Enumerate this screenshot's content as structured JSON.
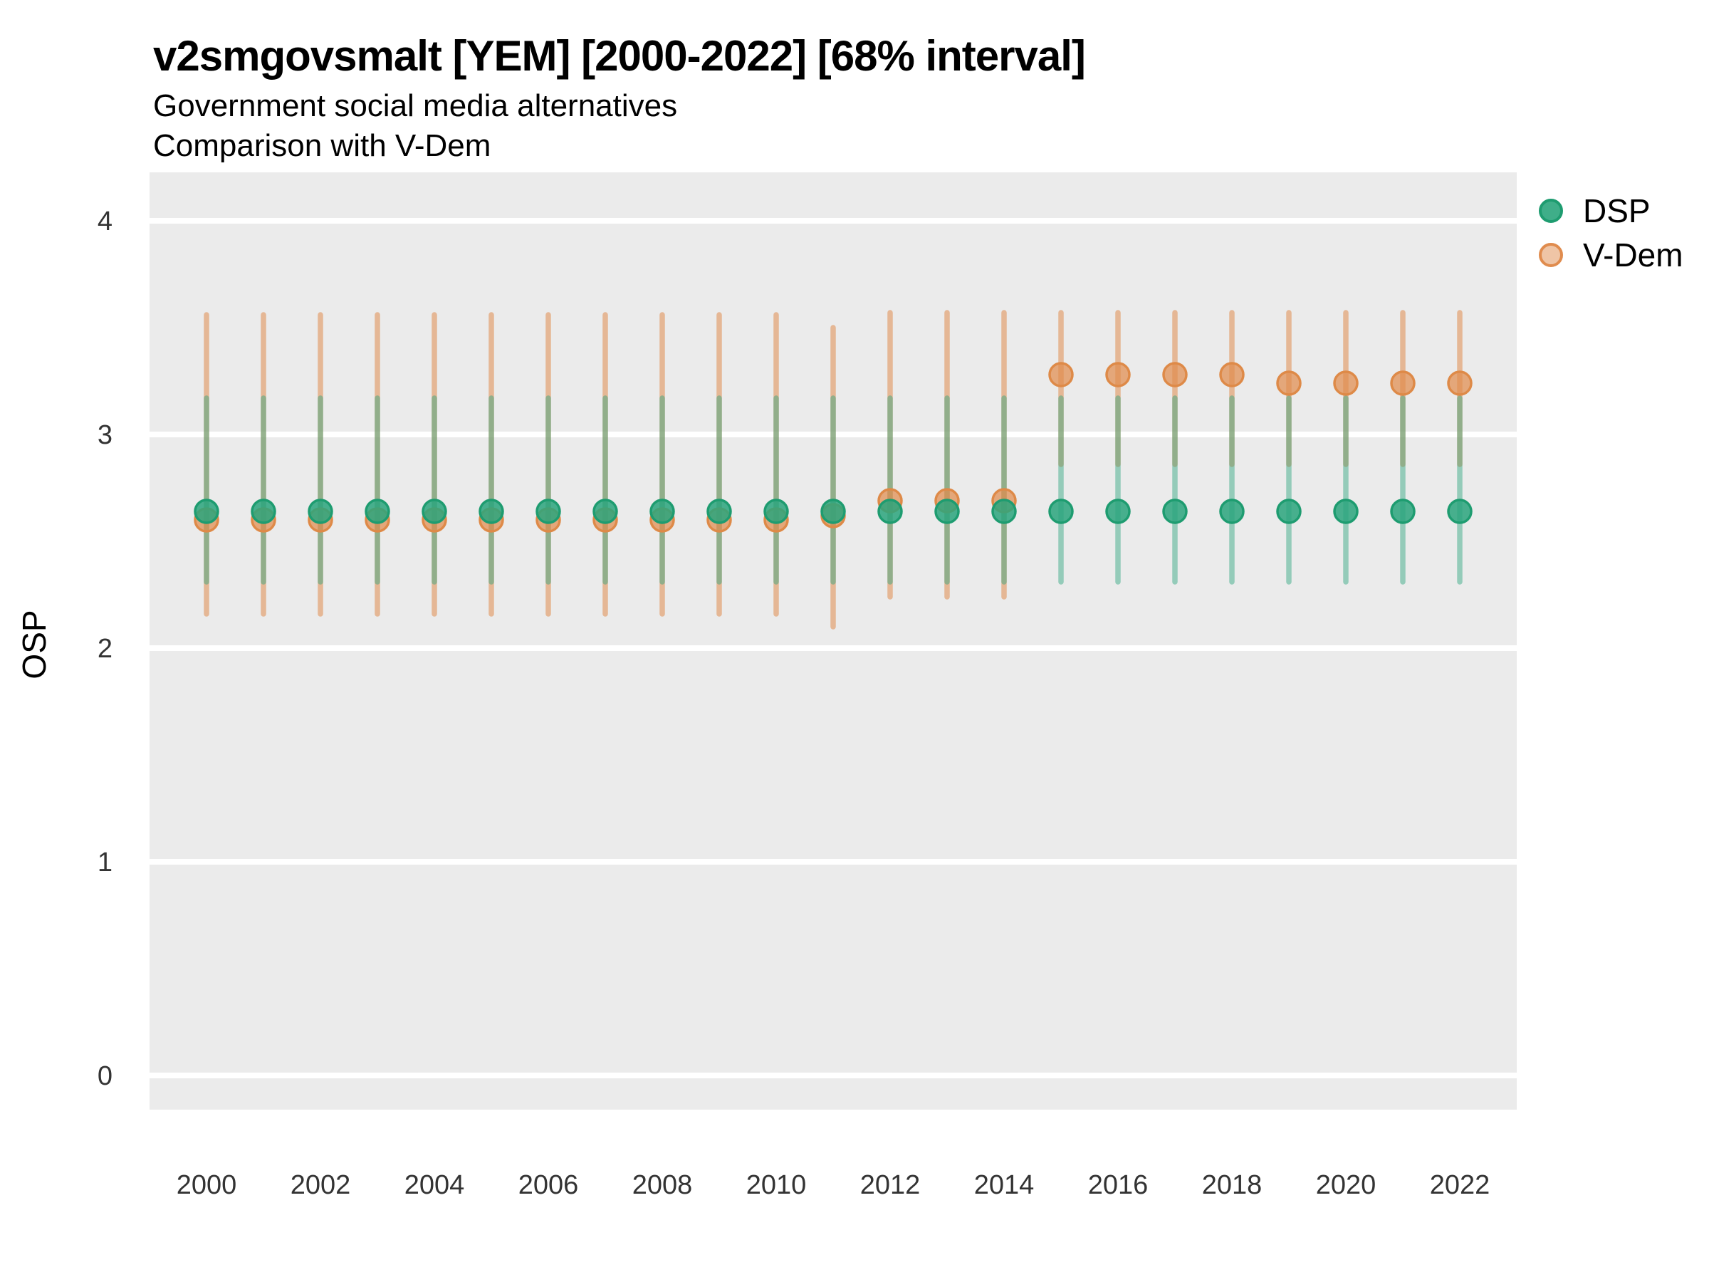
{
  "chart_data": {
    "type": "pointrange",
    "title": "v2smgovsmalt [YEM] [2000-2022] [68% interval]",
    "subtitle1": "Government social media alternatives",
    "subtitle2": "Comparison with V-Dem",
    "xlabel": "",
    "ylabel": "OSP",
    "ylim": [
      -0.13,
      4.24
    ],
    "interval": "68%",
    "grid": true,
    "legend_position": "right",
    "y_ticks": [
      0,
      1,
      2,
      3,
      4
    ],
    "x_ticks": [
      2000,
      2002,
      2004,
      2006,
      2008,
      2010,
      2012,
      2014,
      2016,
      2018,
      2020,
      2022
    ],
    "colors": {
      "dsp": "#2AA57C",
      "vdem": "#E08C4E",
      "panel_bg": "#EBEBEB",
      "gridline": "#FFFFFF",
      "tick_text": "#333333"
    },
    "series": [
      {
        "name": "DSP",
        "color": "#2AA57C",
        "bar_color": "rgba(42,165,124,0.45)",
        "point_fill": "rgba(42,165,124,0.85)",
        "point_stroke": "#1E9C70",
        "points": [
          {
            "year": 2000,
            "value": 2.64,
            "lo": 2.31,
            "hi": 3.17
          },
          {
            "year": 2001,
            "value": 2.64,
            "lo": 2.31,
            "hi": 3.17
          },
          {
            "year": 2002,
            "value": 2.64,
            "lo": 2.31,
            "hi": 3.17
          },
          {
            "year": 2003,
            "value": 2.64,
            "lo": 2.31,
            "hi": 3.17
          },
          {
            "year": 2004,
            "value": 2.64,
            "lo": 2.31,
            "hi": 3.17
          },
          {
            "year": 2005,
            "value": 2.64,
            "lo": 2.31,
            "hi": 3.17
          },
          {
            "year": 2006,
            "value": 2.64,
            "lo": 2.31,
            "hi": 3.17
          },
          {
            "year": 2007,
            "value": 2.64,
            "lo": 2.31,
            "hi": 3.17
          },
          {
            "year": 2008,
            "value": 2.64,
            "lo": 2.31,
            "hi": 3.17
          },
          {
            "year": 2009,
            "value": 2.64,
            "lo": 2.31,
            "hi": 3.17
          },
          {
            "year": 2010,
            "value": 2.64,
            "lo": 2.31,
            "hi": 3.17
          },
          {
            "year": 2011,
            "value": 2.64,
            "lo": 2.31,
            "hi": 3.17
          },
          {
            "year": 2012,
            "value": 2.64,
            "lo": 2.31,
            "hi": 3.17
          },
          {
            "year": 2013,
            "value": 2.64,
            "lo": 2.31,
            "hi": 3.17
          },
          {
            "year": 2014,
            "value": 2.64,
            "lo": 2.31,
            "hi": 3.17
          },
          {
            "year": 2015,
            "value": 2.64,
            "lo": 2.31,
            "hi": 3.17
          },
          {
            "year": 2016,
            "value": 2.64,
            "lo": 2.31,
            "hi": 3.17
          },
          {
            "year": 2017,
            "value": 2.64,
            "lo": 2.31,
            "hi": 3.17
          },
          {
            "year": 2018,
            "value": 2.64,
            "lo": 2.31,
            "hi": 3.17
          },
          {
            "year": 2019,
            "value": 2.64,
            "lo": 2.31,
            "hi": 3.17
          },
          {
            "year": 2020,
            "value": 2.64,
            "lo": 2.31,
            "hi": 3.17
          },
          {
            "year": 2021,
            "value": 2.64,
            "lo": 2.31,
            "hi": 3.17
          },
          {
            "year": 2022,
            "value": 2.64,
            "lo": 2.31,
            "hi": 3.17
          }
        ]
      },
      {
        "name": "V-Dem",
        "color": "#E08C4E",
        "bar_color": "rgba(224,140,78,0.55)",
        "point_fill": "rgba(224,140,78,0.72)",
        "point_stroke": "#DE8A48",
        "points": [
          {
            "year": 2000,
            "value": 2.6,
            "lo": 2.16,
            "hi": 3.56
          },
          {
            "year": 2001,
            "value": 2.6,
            "lo": 2.16,
            "hi": 3.56
          },
          {
            "year": 2002,
            "value": 2.6,
            "lo": 2.16,
            "hi": 3.56
          },
          {
            "year": 2003,
            "value": 2.6,
            "lo": 2.16,
            "hi": 3.56
          },
          {
            "year": 2004,
            "value": 2.6,
            "lo": 2.16,
            "hi": 3.56
          },
          {
            "year": 2005,
            "value": 2.6,
            "lo": 2.16,
            "hi": 3.56
          },
          {
            "year": 2006,
            "value": 2.6,
            "lo": 2.16,
            "hi": 3.56
          },
          {
            "year": 2007,
            "value": 2.6,
            "lo": 2.16,
            "hi": 3.56
          },
          {
            "year": 2008,
            "value": 2.6,
            "lo": 2.16,
            "hi": 3.56
          },
          {
            "year": 2009,
            "value": 2.6,
            "lo": 2.16,
            "hi": 3.56
          },
          {
            "year": 2010,
            "value": 2.6,
            "lo": 2.16,
            "hi": 3.56
          },
          {
            "year": 2011,
            "value": 2.62,
            "lo": 2.1,
            "hi": 3.5
          },
          {
            "year": 2012,
            "value": 2.69,
            "lo": 2.24,
            "hi": 3.57
          },
          {
            "year": 2013,
            "value": 2.69,
            "lo": 2.24,
            "hi": 3.57
          },
          {
            "year": 2014,
            "value": 2.69,
            "lo": 2.24,
            "hi": 3.57
          },
          {
            "year": 2015,
            "value": 3.28,
            "lo": 2.86,
            "hi": 3.57
          },
          {
            "year": 2016,
            "value": 3.28,
            "lo": 2.86,
            "hi": 3.57
          },
          {
            "year": 2017,
            "value": 3.28,
            "lo": 2.86,
            "hi": 3.57
          },
          {
            "year": 2018,
            "value": 3.28,
            "lo": 2.86,
            "hi": 3.57
          },
          {
            "year": 2019,
            "value": 3.24,
            "lo": 2.86,
            "hi": 3.57
          },
          {
            "year": 2020,
            "value": 3.24,
            "lo": 2.86,
            "hi": 3.57
          },
          {
            "year": 2021,
            "value": 3.24,
            "lo": 2.86,
            "hi": 3.57
          },
          {
            "year": 2022,
            "value": 3.24,
            "lo": 2.86,
            "hi": 3.57
          }
        ]
      }
    ]
  }
}
